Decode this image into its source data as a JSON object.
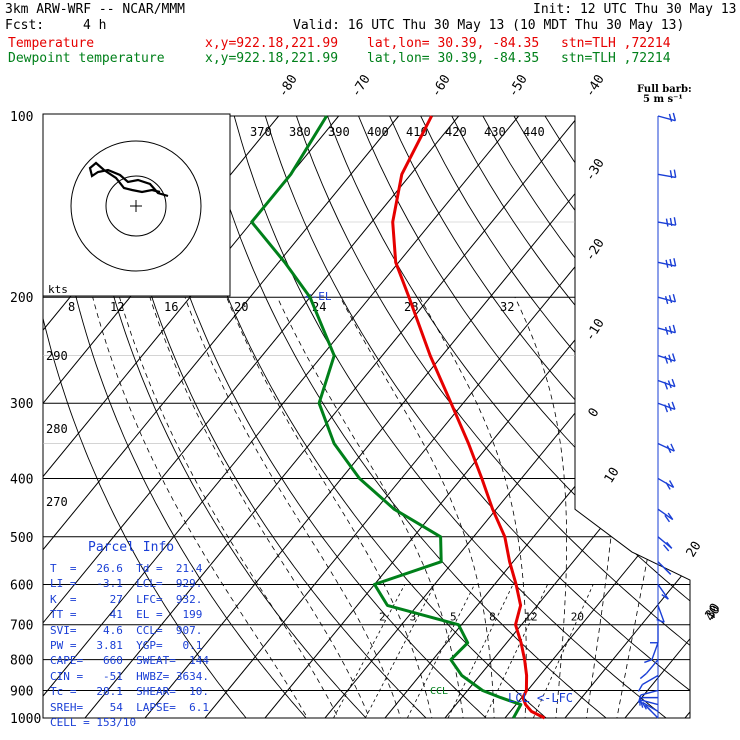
{
  "header": {
    "model": "3km ARW-WRF -- NCAR/MMM",
    "init": "Init: 12 UTC Thu 30 May 13",
    "fcst_label": "Fcst:",
    "fcst_value": "4 h",
    "valid": "Valid: 16 UTC Thu 30 May 13 (10 MDT Thu 30 May 13)",
    "temp_label": "Temperature",
    "dew_label": "Dewpoint temperature",
    "xy": "x,y=922.18,221.99",
    "latlon": "lat,lon= 30.39, -84.35",
    "stn": "stn=TLH ,72214"
  },
  "colors": {
    "temperature": "#e60000",
    "dewpoint": "#00801a",
    "wind": "#1a3fd6",
    "grid": "#000000"
  },
  "wind_legend": {
    "line1": "Full barb:",
    "line2": "5 m s⁻¹"
  },
  "hodo": {
    "kts_label": "kts"
  },
  "lcl_label": "LCL <-LFC",
  "el_label": "EL",
  "ccl_label": "CCL",
  "parcel_info": {
    "title": "Parcel Info",
    "rows": [
      "T  =   26.6  Td =  21.4",
      "LI =   -3.1  LCL=  929.",
      "K  =     27  LFC=  932.",
      "TT =     41  EL =   199",
      "SVI=    4.6  CCL=  907.",
      "PW =   3.81  YGP=   0.1",
      "CAPE=   660  SWEAT=  144",
      "CIN =   -51  HWBZ= 3634.",
      "Tc =   28.1  SHEAR=  10.",
      "SREH=    54  LAPSE=  6.1",
      "CELL = 153/10"
    ]
  },
  "chart_data": {
    "type": "line",
    "title": "Skew-T log-P sounding",
    "pressure_levels": [
      100,
      200,
      300,
      400,
      500,
      600,
      700,
      800,
      900,
      1000
    ],
    "isotherm_labels": [
      "-80",
      "-70",
      "-60",
      "-50",
      "-40",
      "-30",
      "-20",
      "-10",
      "0",
      "10",
      "20",
      "30",
      "40"
    ],
    "theta_labels": [
      "370",
      "380",
      "390",
      "400",
      "410",
      "420",
      "430",
      "440"
    ],
    "theta_left_labels": [
      "290",
      "280",
      "270"
    ],
    "mixing_ratio_labels": [
      "2",
      "3",
      "5",
      "8",
      "12",
      "20"
    ],
    "hodograph_ring_labels": [
      "8",
      "12",
      "16",
      "20",
      "24",
      "28",
      "32"
    ],
    "series": [
      {
        "name": "Temperature",
        "points": [
          [
            1000,
            26.6
          ],
          [
            975,
            23.5
          ],
          [
            950,
            21.6
          ],
          [
            925,
            20.2
          ],
          [
            900,
            19.8
          ],
          [
            850,
            17.8
          ],
          [
            800,
            15.3
          ],
          [
            750,
            12.4
          ],
          [
            700,
            9.0
          ],
          [
            650,
            7.2
          ],
          [
            600,
            3.6
          ],
          [
            550,
            -0.6
          ],
          [
            500,
            -4.8
          ],
          [
            450,
            -10.6
          ],
          [
            400,
            -16.6
          ],
          [
            350,
            -23.6
          ],
          [
            300,
            -32.0
          ],
          [
            250,
            -42.0
          ],
          [
            200,
            -53.5
          ],
          [
            175,
            -60.5
          ],
          [
            150,
            -66.5
          ],
          [
            125,
            -71.5
          ],
          [
            100,
            -74.5
          ]
        ]
      },
      {
        "name": "Dewpoint temperature",
        "points": [
          [
            1000,
            21.4
          ],
          [
            950,
            20.8
          ],
          [
            925,
            16.5
          ],
          [
            900,
            12.5
          ],
          [
            850,
            7.0
          ],
          [
            800,
            3.0
          ],
          [
            750,
            3.5
          ],
          [
            700,
            -0.5
          ],
          [
            650,
            -15.0
          ],
          [
            600,
            -20.0
          ],
          [
            550,
            -12.0
          ],
          [
            500,
            -15.5
          ],
          [
            450,
            -27.0
          ],
          [
            400,
            -37.0
          ],
          [
            350,
            -46.0
          ],
          [
            300,
            -54.0
          ],
          [
            250,
            -58.0
          ],
          [
            200,
            -70.0
          ],
          [
            175,
            -79.0
          ],
          [
            150,
            -90.0
          ],
          [
            125,
            -90.0
          ],
          [
            100,
            -92.0
          ]
        ]
      }
    ],
    "wind_profile": [
      {
        "p": 1000,
        "spd": 3,
        "dir": 45
      },
      {
        "p": 975,
        "spd": 5,
        "dir": 60
      },
      {
        "p": 950,
        "spd": 6,
        "dir": 75
      },
      {
        "p": 925,
        "spd": 6,
        "dir": 90
      },
      {
        "p": 900,
        "spd": 6,
        "dir": 105
      },
      {
        "p": 850,
        "spd": 5,
        "dir": 120
      },
      {
        "p": 800,
        "spd": 4,
        "dir": 140
      },
      {
        "p": 750,
        "spd": 4,
        "dir": 160
      },
      {
        "p": 700,
        "spd": 5,
        "dir": 180
      },
      {
        "p": 650,
        "spd": 5,
        "dir": 200
      },
      {
        "p": 600,
        "spd": 6,
        "dir": 215
      },
      {
        "p": 550,
        "spd": 7,
        "dir": 225
      },
      {
        "p": 500,
        "spd": 8,
        "dir": 230
      },
      {
        "p": 450,
        "spd": 9,
        "dir": 235
      },
      {
        "p": 400,
        "spd": 11,
        "dir": 240
      },
      {
        "p": 350,
        "spd": 12,
        "dir": 245
      },
      {
        "p": 300,
        "spd": 14,
        "dir": 250
      },
      {
        "p": 275,
        "spd": 15,
        "dir": 250
      },
      {
        "p": 250,
        "spd": 15,
        "dir": 252
      },
      {
        "p": 225,
        "spd": 15,
        "dir": 255
      },
      {
        "p": 200,
        "spd": 16,
        "dir": 255
      },
      {
        "p": 175,
        "spd": 16,
        "dir": 258
      },
      {
        "p": 150,
        "spd": 16,
        "dir": 260
      },
      {
        "p": 125,
        "spd": 12,
        "dir": 260
      },
      {
        "p": 100,
        "spd": 8,
        "dir": 255
      }
    ]
  }
}
